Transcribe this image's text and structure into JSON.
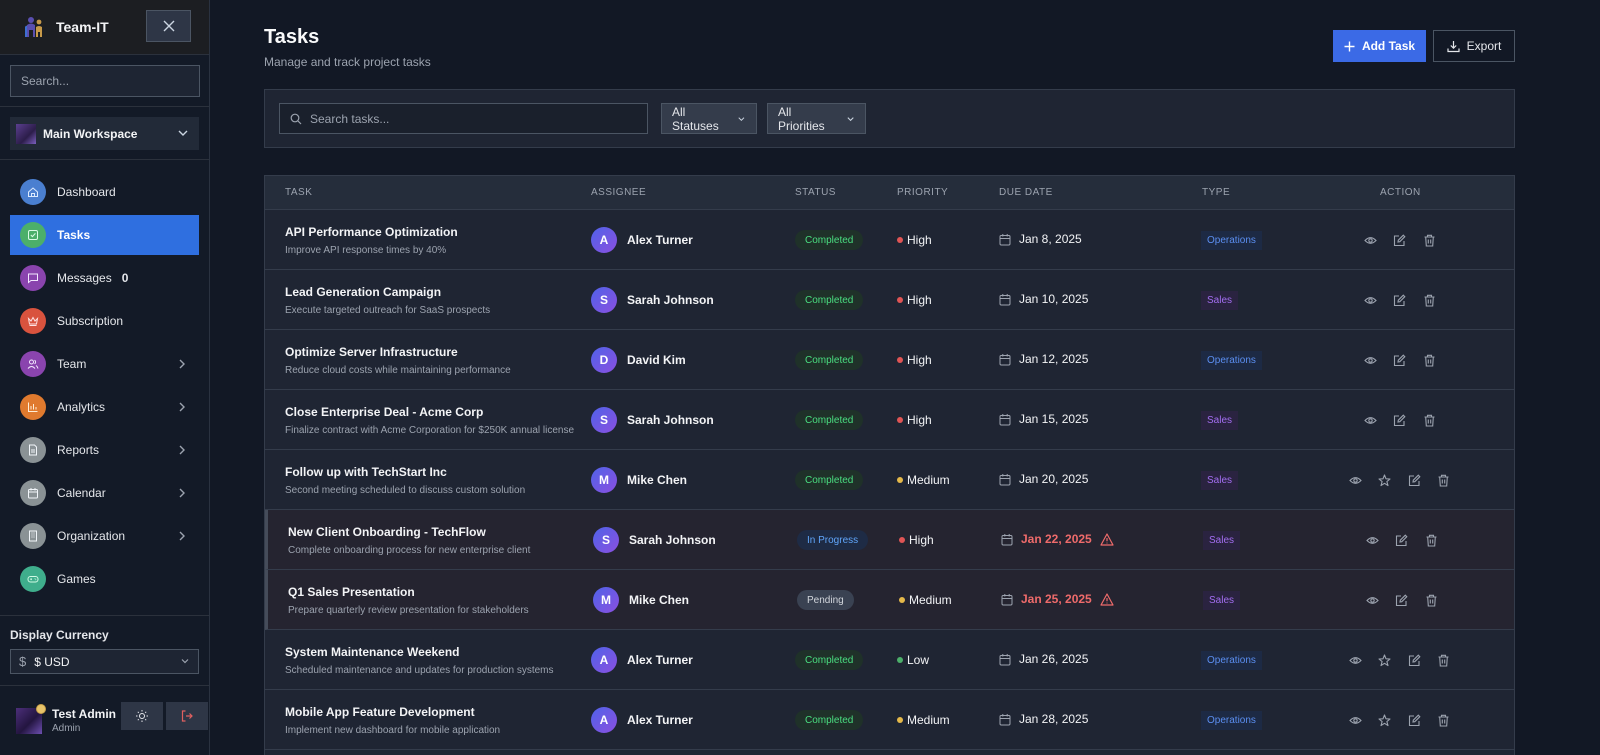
{
  "sidebar": {
    "brand": "Team-IT",
    "search_placeholder": "Search...",
    "workspace": "Main Workspace",
    "items": [
      {
        "label": "Dashboard",
        "icon": "home-icon",
        "color": "#4a7fd0",
        "active": false,
        "chevron": false
      },
      {
        "label": "Tasks",
        "icon": "check-square-icon",
        "color": "#4caf6a",
        "active": true,
        "chevron": false
      },
      {
        "label": "Messages",
        "icon": "message-icon",
        "color": "#8a44ae",
        "active": false,
        "chevron": false,
        "badge": "0"
      },
      {
        "label": "Subscription",
        "icon": "crown-icon",
        "color": "#d9533e",
        "active": false,
        "chevron": false
      },
      {
        "label": "Team",
        "icon": "users-icon",
        "color": "#8a44ae",
        "active": false,
        "chevron": true
      },
      {
        "label": "Analytics",
        "icon": "bar-chart-icon",
        "color": "#e07a2e",
        "active": false,
        "chevron": true
      },
      {
        "label": "Reports",
        "icon": "document-icon",
        "color": "#8a9295",
        "active": false,
        "chevron": true
      },
      {
        "label": "Calendar",
        "icon": "calendar-icon",
        "color": "#8a9295",
        "active": false,
        "chevron": true
      },
      {
        "label": "Organization",
        "icon": "building-icon",
        "color": "#8a9295",
        "active": false,
        "chevron": true
      },
      {
        "label": "Games",
        "icon": "gamepad-icon",
        "color": "#3fae8c",
        "active": false,
        "chevron": false
      }
    ],
    "currency": {
      "title": "Display Currency",
      "symbol": "$",
      "value": "$ USD"
    },
    "user": {
      "name": "Test Admin",
      "role": "Admin"
    }
  },
  "header": {
    "title": "Tasks",
    "subtitle": "Manage and track project tasks",
    "add_label": "Add Task",
    "export_label": "Export",
    "accent": "#3b6ae6"
  },
  "filters": {
    "search_placeholder": "Search tasks...",
    "status": "All Statuses",
    "priority": "All Priorities"
  },
  "table": {
    "columns": [
      "TASK",
      "ASSIGNEE",
      "STATUS",
      "PRIORITY",
      "DUE DATE",
      "TYPE",
      "ACTION"
    ],
    "rows": [
      {
        "title": "API Performance Optimization",
        "desc": "Improve API response times by 40%",
        "initial": "A",
        "assignee": "Alex Turner",
        "status": "Completed",
        "priority": "High",
        "due": "Jan 8, 2025",
        "overdue": false,
        "type": "Operations",
        "star": false
      },
      {
        "title": "Lead Generation Campaign",
        "desc": "Execute targeted outreach for SaaS prospects",
        "initial": "S",
        "assignee": "Sarah Johnson",
        "status": "Completed",
        "priority": "High",
        "due": "Jan 10, 2025",
        "overdue": false,
        "type": "Sales",
        "star": false
      },
      {
        "title": "Optimize Server Infrastructure",
        "desc": "Reduce cloud costs while maintaining performance",
        "initial": "D",
        "assignee": "David Kim",
        "status": "Completed",
        "priority": "High",
        "due": "Jan 12, 2025",
        "overdue": false,
        "type": "Operations",
        "star": false
      },
      {
        "title": "Close Enterprise Deal - Acme Corp",
        "desc": "Finalize contract with Acme Corporation for $250K annual license",
        "initial": "S",
        "assignee": "Sarah Johnson",
        "status": "Completed",
        "priority": "High",
        "due": "Jan 15, 2025",
        "overdue": false,
        "type": "Sales",
        "star": false
      },
      {
        "title": "Follow up with TechStart Inc",
        "desc": "Second meeting scheduled to discuss custom solution",
        "initial": "M",
        "assignee": "Mike Chen",
        "status": "Completed",
        "priority": "Medium",
        "due": "Jan 20, 2025",
        "overdue": false,
        "type": "Sales",
        "star": true
      },
      {
        "title": "New Client Onboarding - TechFlow",
        "desc": "Complete onboarding process for new enterprise client",
        "initial": "S",
        "assignee": "Sarah Johnson",
        "status": "In Progress",
        "priority": "High",
        "due": "Jan 22, 2025",
        "overdue": true,
        "type": "Sales",
        "star": false
      },
      {
        "title": "Q1 Sales Presentation",
        "desc": "Prepare quarterly review presentation for stakeholders",
        "initial": "M",
        "assignee": "Mike Chen",
        "status": "Pending",
        "priority": "Medium",
        "due": "Jan 25, 2025",
        "overdue": true,
        "type": "Sales",
        "star": false
      },
      {
        "title": "System Maintenance Weekend",
        "desc": "Scheduled maintenance and updates for production systems",
        "initial": "A",
        "assignee": "Alex Turner",
        "status": "Completed",
        "priority": "Low",
        "due": "Jan 26, 2025",
        "overdue": false,
        "type": "Operations",
        "star": true
      },
      {
        "title": "Mobile App Feature Development",
        "desc": "Implement new dashboard for mobile application",
        "initial": "A",
        "assignee": "Alex Turner",
        "status": "Completed",
        "priority": "Medium",
        "due": "Jan 28, 2025",
        "overdue": false,
        "type": "Operations",
        "star": true
      }
    ],
    "priority_colors": {
      "High": "#e05555",
      "Medium": "#e5b94a",
      "Low": "#4caf6a"
    }
  }
}
